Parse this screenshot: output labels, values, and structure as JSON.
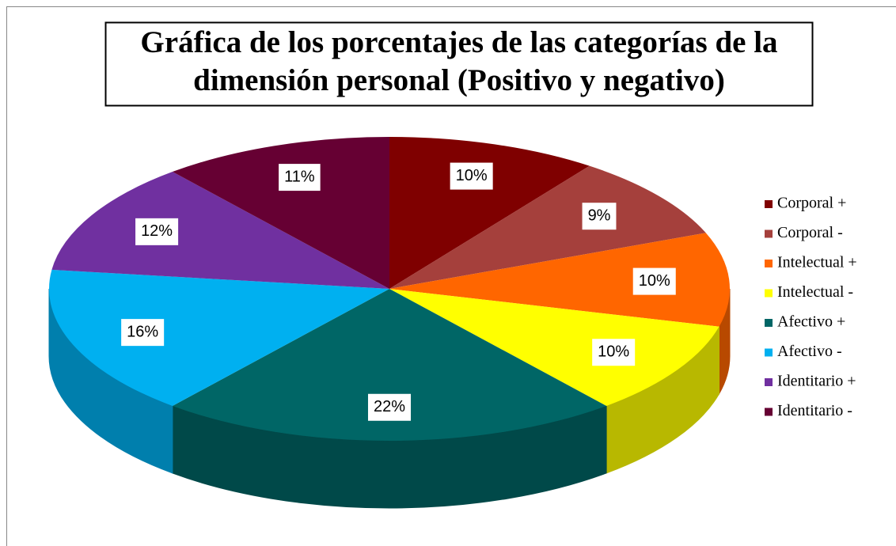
{
  "chart_data": {
    "type": "pie3d",
    "title": [
      "Gráfica de los porcentajes de las categorías de la",
      "dimensión personal (Positivo y negativo)"
    ],
    "categories": [
      "Corporal +",
      "Corporal -",
      "Intelectual +",
      "Intelectual -",
      "Afectivo +",
      "Afectivo -",
      "Identitario +",
      "Identitario -"
    ],
    "values": [
      10,
      9,
      10,
      10,
      22,
      16,
      12,
      11
    ],
    "value_labels": [
      "10%",
      "9%",
      "10%",
      "10%",
      "22%",
      "16%",
      "12%",
      "11%"
    ],
    "colors": [
      "#7f0000",
      "#a5403c",
      "#ff6600",
      "#ffff00",
      "#006666",
      "#00b0f0",
      "#7030a0",
      "#660033"
    ],
    "legend": "right"
  }
}
